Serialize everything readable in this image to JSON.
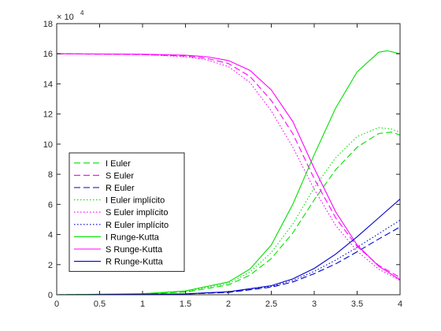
{
  "chart_data": {
    "type": "line",
    "title": "",
    "xlabel": "",
    "ylabel": "",
    "xlim": [
      0,
      4
    ],
    "ylim": [
      0,
      18
    ],
    "y_exponent_label": "× 10",
    "y_exponent_power": "4",
    "x_ticks": [
      0,
      0.5,
      1,
      1.5,
      2,
      2.5,
      3,
      3.5,
      4
    ],
    "x_tick_labels": [
      "0",
      "0.5",
      "1",
      "1.5",
      "2",
      "2.5",
      "3",
      "3.5",
      "4"
    ],
    "y_ticks": [
      0,
      2,
      4,
      6,
      8,
      10,
      12,
      14,
      16,
      18
    ],
    "y_tick_labels": [
      "0",
      "2",
      "4",
      "6",
      "8",
      "10",
      "12",
      "14",
      "16",
      "18"
    ],
    "legend_placement": "left",
    "grid": false,
    "colors": {
      "I": "#00e000",
      "S": "#ff00ff",
      "R": "#0000cd"
    },
    "series": [
      {
        "name": "I Euler",
        "color": "#00e000",
        "style": "dashed",
        "x": [
          0,
          1.0,
          1.5,
          2.0,
          2.25,
          2.5,
          2.75,
          3.0,
          3.25,
          3.5,
          3.75,
          3.9,
          4.0
        ],
        "y": [
          0,
          0.05,
          0.18,
          0.65,
          1.3,
          2.4,
          4.1,
          6.3,
          8.3,
          9.8,
          10.7,
          10.8,
          10.6
        ]
      },
      {
        "name": "S Euler",
        "color": "#ff00ff",
        "style": "dashed",
        "x": [
          0,
          1.0,
          1.5,
          1.75,
          2.0,
          2.25,
          2.5,
          2.75,
          3.0,
          3.25,
          3.5,
          3.75,
          4.0
        ],
        "y": [
          16.0,
          15.95,
          15.85,
          15.7,
          15.35,
          14.5,
          12.9,
          10.7,
          7.7,
          5.1,
          3.2,
          1.95,
          1.15
        ]
      },
      {
        "name": "R Euler",
        "color": "#0000cd",
        "style": "dashed",
        "x": [
          0,
          1.5,
          2.0,
          2.5,
          2.75,
          3.0,
          3.25,
          3.5,
          3.75,
          4.0
        ],
        "y": [
          0,
          0.05,
          0.15,
          0.5,
          0.85,
          1.4,
          2.05,
          2.85,
          3.7,
          4.5
        ]
      },
      {
        "name": "I Euler implícito",
        "color": "#00e000",
        "style": "dotted",
        "x": [
          0,
          1.0,
          1.5,
          2.0,
          2.25,
          2.5,
          2.75,
          3.0,
          3.25,
          3.5,
          3.75,
          3.9,
          4.0
        ],
        "y": [
          0,
          0.06,
          0.22,
          0.75,
          1.5,
          2.8,
          4.7,
          7.1,
          9.1,
          10.5,
          11.1,
          11.0,
          10.8
        ]
      },
      {
        "name": "S Euler implícito",
        "color": "#ff00ff",
        "style": "dotted",
        "x": [
          0,
          1.0,
          1.5,
          1.75,
          2.0,
          2.25,
          2.5,
          2.75,
          3.0,
          3.25,
          3.5,
          3.75,
          4.0
        ],
        "y": [
          16.0,
          15.95,
          15.8,
          15.6,
          15.15,
          14.1,
          12.2,
          9.8,
          7.0,
          4.6,
          2.9,
          1.7,
          0.95
        ]
      },
      {
        "name": "R Euler implícito",
        "color": "#0000cd",
        "style": "dotted",
        "x": [
          0,
          1.5,
          2.0,
          2.5,
          2.75,
          3.0,
          3.25,
          3.5,
          3.75,
          4.0
        ],
        "y": [
          0,
          0.06,
          0.18,
          0.55,
          0.95,
          1.55,
          2.3,
          3.15,
          4.05,
          4.95
        ]
      },
      {
        "name": "I Runge-Kutta",
        "color": "#00e000",
        "style": "solid",
        "x": [
          0,
          1.0,
          1.5,
          2.0,
          2.25,
          2.5,
          2.75,
          3.0,
          3.25,
          3.5,
          3.75,
          3.85,
          4.0
        ],
        "y": [
          0,
          0.07,
          0.25,
          0.85,
          1.7,
          3.3,
          6.0,
          9.3,
          12.4,
          14.8,
          16.1,
          16.2,
          16.0
        ]
      },
      {
        "name": "S Runge-Kutta",
        "color": "#ff00ff",
        "style": "solid",
        "x": [
          0,
          1.0,
          1.5,
          1.75,
          2.0,
          2.25,
          2.5,
          2.75,
          3.0,
          3.25,
          3.5,
          3.75,
          4.0
        ],
        "y": [
          16.0,
          15.97,
          15.9,
          15.8,
          15.55,
          14.9,
          13.6,
          11.5,
          8.4,
          5.5,
          3.3,
          1.9,
          1.0
        ]
      },
      {
        "name": "R Runge-Kutta",
        "color": "#0000cd",
        "style": "solid",
        "x": [
          0,
          1.5,
          2.0,
          2.5,
          2.75,
          3.0,
          3.25,
          3.5,
          3.75,
          4.0
        ],
        "y": [
          0,
          0.06,
          0.2,
          0.6,
          1.05,
          1.75,
          2.7,
          3.85,
          5.1,
          6.35
        ]
      }
    ]
  }
}
